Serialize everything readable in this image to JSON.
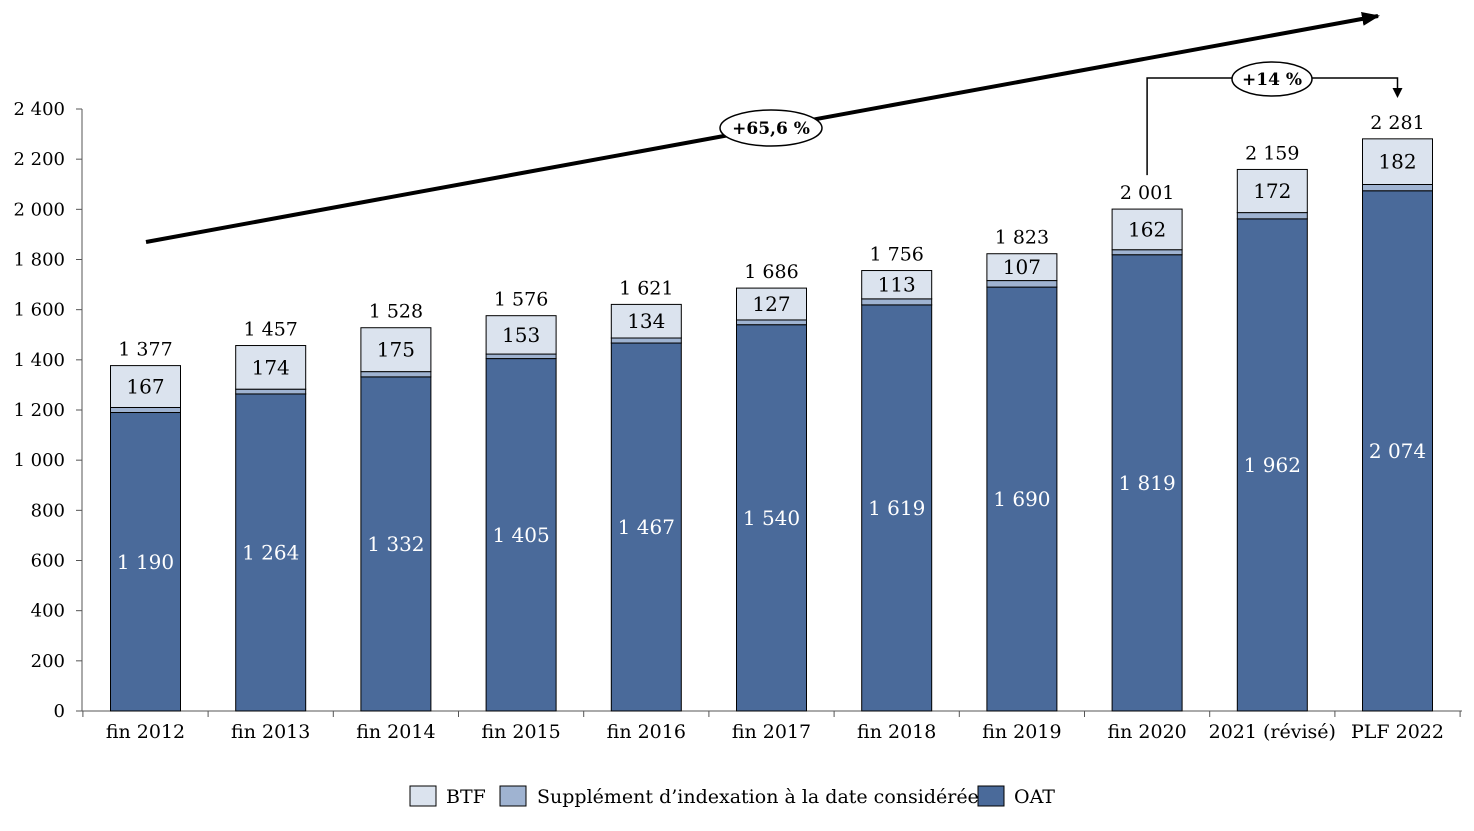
{
  "chart_data": {
    "type": "bar",
    "stacked": true,
    "categories": [
      "fin 2012",
      "fin 2013",
      "fin 2014",
      "fin 2015",
      "fin 2016",
      "fin 2017",
      "fin 2018",
      "fin 2019",
      "fin 2020",
      "2021 (révisé)",
      "PLF 2022"
    ],
    "series": [
      {
        "name": "OAT",
        "values": [
          1190,
          1264,
          1332,
          1405,
          1467,
          1540,
          1619,
          1690,
          1819,
          1962,
          2074
        ],
        "color": "#4a6a9a"
      },
      {
        "name": "Supplément d’indexation à la date considérée",
        "values": [
          20,
          19,
          21,
          18,
          20,
          19,
          24,
          26,
          20,
          25,
          25
        ],
        "color": "#9fb3d1"
      },
      {
        "name": "BTF",
        "values": [
          167,
          174,
          175,
          153,
          134,
          127,
          113,
          107,
          162,
          172,
          182
        ],
        "color": "#dbe3ee"
      }
    ],
    "oat_labels": [
      "1 190",
      "1 264",
      "1 332",
      "1 405",
      "1 467",
      "1 540",
      "1 619",
      "1 690",
      "1 819",
      "1 962",
      "2 074"
    ],
    "btf_labels": [
      "167",
      "174",
      "175",
      "153",
      "134",
      "127",
      "113",
      "107",
      "162",
      "172",
      "182"
    ],
    "totals": [
      1377,
      1457,
      1528,
      1576,
      1621,
      1686,
      1756,
      1823,
      2001,
      2159,
      2281
    ],
    "total_labels": [
      "1 377",
      "1 457",
      "1 528",
      "1 576",
      "1 621",
      "1 686",
      "1 756",
      "1 823",
      "2 001",
      "2 159",
      "2 281"
    ],
    "ylim": [
      0,
      2400
    ],
    "yticks": [
      0,
      200,
      400,
      600,
      800,
      1000,
      1200,
      1400,
      1600,
      1800,
      2000,
      2200,
      2400
    ],
    "ytick_labels": [
      "0",
      "200",
      "400",
      "600",
      "800",
      "1 000",
      "1 200",
      "1 400",
      "1 600",
      "1 800",
      "2 000",
      "2 200",
      "2 400"
    ],
    "grid": false,
    "legend": {
      "position": "bottom",
      "entries": [
        "BTF",
        "Supplément d’indexation à la date considérée",
        "OAT"
      ]
    },
    "annotations": [
      {
        "text": "+65,6 %",
        "from": "fin 2012",
        "to": "PLF 2022"
      },
      {
        "text": "+14 %",
        "from": "fin 2020",
        "to": "PLF 2022"
      }
    ],
    "outline_color": "#000000",
    "arrow_color": "#000000"
  }
}
